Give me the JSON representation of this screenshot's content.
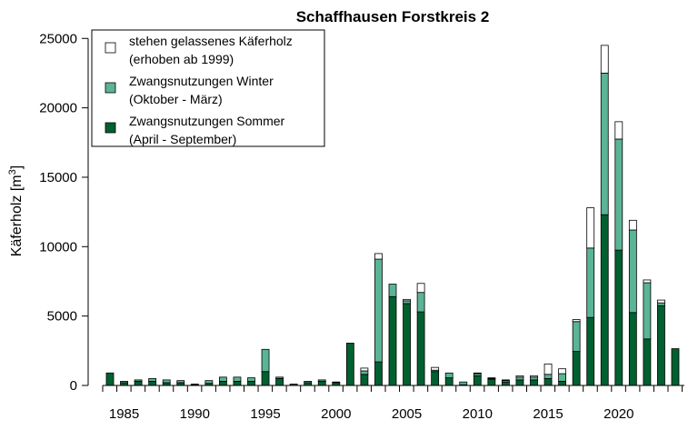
{
  "chart_data": {
    "type": "bar",
    "stacked": true,
    "title": "Schaffhausen Forstkreis 2",
    "ylabel": "Käferholz [m",
    "ylabel_sup": "3",
    "ylabel_close": "]",
    "ylim": [
      0,
      26000
    ],
    "yticks": [
      0,
      5000,
      10000,
      15000,
      20000,
      25000
    ],
    "xtick_labels": [
      1985,
      1990,
      1995,
      2000,
      2005,
      2010,
      2015,
      2020
    ],
    "x": [
      1984,
      1985,
      1986,
      1987,
      1988,
      1989,
      1990,
      1991,
      1992,
      1993,
      1994,
      1995,
      1996,
      1997,
      1998,
      1999,
      2000,
      2001,
      2002,
      2003,
      2004,
      2005,
      2006,
      2007,
      2008,
      2009,
      2010,
      2011,
      2012,
      2013,
      2014,
      2015,
      2016,
      2017,
      2018,
      2019,
      2020,
      2021,
      2022,
      2023,
      2024
    ],
    "grid": false,
    "legend_position": "top-left",
    "series": [
      {
        "name": "Zwangsnutzungen Sommer",
        "name_line2": "(April - September)",
        "color": "#006030",
        "values": [
          900,
          200,
          300,
          300,
          200,
          200,
          50,
          150,
          300,
          300,
          300,
          1000,
          500,
          100,
          200,
          300,
          200,
          3050,
          800,
          1700,
          6400,
          5900,
          5300,
          1000,
          550,
          50,
          700,
          450,
          250,
          400,
          400,
          500,
          300,
          2450,
          4900,
          12300,
          9750,
          5250,
          3350,
          5750,
          2650
        ]
      },
      {
        "name": "Zwangsnutzungen Winter",
        "name_line2": "(Oktober - März)",
        "color": "#5ab496",
        "values": [
          0,
          100,
          100,
          200,
          200,
          150,
          50,
          200,
          300,
          300,
          250,
          1600,
          100,
          0,
          100,
          100,
          0,
          0,
          250,
          7400,
          900,
          200,
          1400,
          100,
          350,
          200,
          150,
          50,
          100,
          200,
          200,
          300,
          550,
          2150,
          5000,
          10200,
          8000,
          5950,
          4050,
          200,
          0
        ]
      },
      {
        "name": "stehen gelassenes Käferholz",
        "name_line2": "(erhoben ab 1999)",
        "color": "#ffffff",
        "values": [
          0,
          0,
          0,
          0,
          0,
          0,
          0,
          0,
          0,
          0,
          0,
          0,
          0,
          0,
          0,
          0,
          50,
          0,
          200,
          400,
          0,
          100,
          650,
          200,
          0,
          0,
          50,
          50,
          50,
          100,
          100,
          750,
          350,
          150,
          2900,
          2000,
          1250,
          700,
          200,
          200,
          0
        ]
      }
    ]
  }
}
